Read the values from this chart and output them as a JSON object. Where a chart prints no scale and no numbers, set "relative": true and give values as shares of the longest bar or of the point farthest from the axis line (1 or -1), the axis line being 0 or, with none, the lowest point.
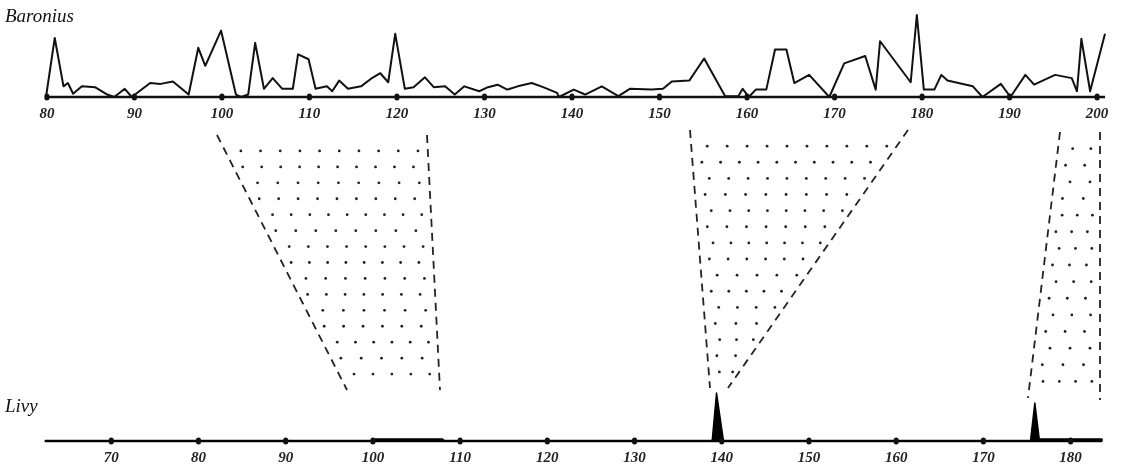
{
  "chart_data": [
    {
      "type": "line",
      "title": "Baronius",
      "relative": true,
      "color": "#111111",
      "x": [
        79.9,
        80.9,
        81.9,
        82.4,
        83.0,
        84.0,
        85.5,
        86.9,
        87.7,
        88.9,
        89.7,
        91.8,
        93.0,
        94.4,
        96.2,
        97.3,
        98.1,
        99.9,
        101.6,
        102.2,
        103.0,
        103.8,
        104.8,
        105.8,
        106.9,
        108.1,
        108.7,
        109.9,
        110.7,
        112.0,
        112.6,
        113.4,
        114.4,
        115.9,
        117.0,
        118.1,
        119.0,
        119.8,
        120.9,
        121.9,
        123.2,
        124.2,
        125.5,
        126.6,
        127.7,
        129.4,
        130.4,
        131.5,
        132.6,
        133.8,
        135.4,
        136.7,
        138.3,
        138.5,
        140.2,
        141.5,
        143.4,
        145.3,
        146.6,
        149.1,
        150.4,
        151.4,
        153.4,
        155.1,
        157.5,
        159.0,
        159.5,
        160.2,
        161.0,
        162.2,
        163.2,
        164.5,
        165.4,
        167.1,
        169.4,
        171.1,
        173.5,
        174.7,
        175.2,
        178.7,
        179.4,
        180.2,
        181.4,
        182.2,
        182.9,
        185.8,
        186.9,
        189.0,
        190.1,
        191.8,
        192.8,
        195.2,
        197.1,
        197.7,
        198.2,
        199.2,
        200.9
      ],
      "values": [
        0,
        0.72,
        0.13,
        0.17,
        0.04,
        0.13,
        0.12,
        0.03,
        0,
        0.1,
        0,
        0.17,
        0.16,
        0.19,
        0.03,
        0.6,
        0.38,
        0.81,
        0.03,
        0,
        0.03,
        0.66,
        0.1,
        0.23,
        0.1,
        0.1,
        0.52,
        0.46,
        0.1,
        0.13,
        0.07,
        0.2,
        0.1,
        0.13,
        0.22,
        0.29,
        0.18,
        0.77,
        0.1,
        0.12,
        0.24,
        0.12,
        0.13,
        0.03,
        0.13,
        0.07,
        0.12,
        0.15,
        0.09,
        0.13,
        0.17,
        0.12,
        0.05,
        0,
        0.09,
        0.03,
        0.13,
        0.01,
        0.1,
        0.09,
        0.1,
        0.19,
        0.2,
        0.47,
        0.01,
        0.01,
        0.1,
        0,
        0.09,
        0.09,
        0.58,
        0.58,
        0.17,
        0.27,
        0,
        0.41,
        0.5,
        0.09,
        0.68,
        0.18,
        1,
        0.09,
        0.09,
        0.27,
        0.2,
        0.13,
        0,
        0.16,
        0,
        0.27,
        0.15,
        0.27,
        0.23,
        0.07,
        0.71,
        0.07,
        0.77
      ],
      "xlim": [
        79.9,
        200.9
      ],
      "xticks": [
        80,
        90,
        100,
        110,
        120,
        130,
        140,
        150,
        160,
        170,
        180,
        190,
        200
      ]
    },
    {
      "type": "area",
      "title": "Livy",
      "relative": true,
      "color": "#000000",
      "x": [
        62.4,
        100,
        100.2,
        108,
        108.2,
        138.9,
        139.4,
        140.2,
        175.4,
        175.9,
        176.4,
        183.6
      ],
      "values": [
        0,
        0,
        0.04,
        0.04,
        0,
        0,
        1,
        0,
        0,
        0.79,
        0.04,
        0.04
      ],
      "xlim": [
        62.4,
        183.6
      ],
      "xticks": [
        70,
        80,
        90,
        100,
        110,
        120,
        130,
        140,
        150,
        160,
        170,
        180
      ]
    }
  ]
}
